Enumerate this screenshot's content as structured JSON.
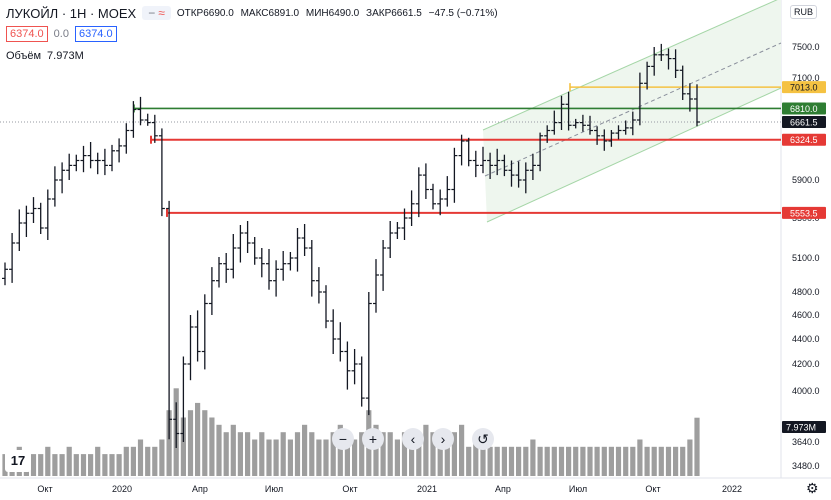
{
  "header": {
    "symbol": "ЛУКОЙЛ · 1Н · MOEX",
    "indicator_minus": "−",
    "indicator_wave": "≈",
    "open_label": "ОТКР",
    "open": "6690.0",
    "high_label": "МАКС",
    "high": "6891.0",
    "low_label": "МИН",
    "low": "6490.0",
    "close_label": "ЗАКР",
    "close": "6661.5",
    "change": "−47.5 (−0.71%)",
    "bid": "6374.0",
    "spread": "0.0",
    "ask": "6374.0",
    "volume_label": "Объём",
    "volume": "7.973M",
    "currency": "RUB"
  },
  "controls": {
    "zoom_out": "−",
    "zoom_in": "+",
    "scroll_left": "‹",
    "scroll_right": "›",
    "reset": "↺",
    "logo": "17",
    "settings": "⚙"
  },
  "colors": {
    "bar": "#131722",
    "volume": "#9e9e9e",
    "green_line": "#2e7d32",
    "red_line": "#e53935",
    "yellow_line": "#f5c242",
    "channel": "#a5d6a7"
  },
  "chart_data": {
    "type": "ohlc",
    "interval": "1W",
    "x_ticks": [
      "Окт",
      "2020",
      "Апр",
      "Июл",
      "Окт",
      "2021",
      "Апр",
      "Июл",
      "Окт",
      "2022"
    ],
    "y_ticks": [
      7500,
      7100,
      6700,
      6300,
      5900,
      5500,
      5100,
      4800,
      4600,
      4400,
      4200,
      4000,
      3640,
      3480
    ],
    "closes": [
      5000,
      5250,
      5450,
      5550,
      5600,
      5400,
      5700,
      5900,
      6000,
      6050,
      6100,
      6150,
      6100,
      6100,
      6050,
      6200,
      6250,
      6500,
      6800,
      6700,
      6650,
      6400,
      5600,
      3800,
      3700,
      4200,
      4500,
      4300,
      4700,
      4900,
      5050,
      5000,
      5200,
      5350,
      5250,
      5100,
      5050,
      4900,
      5000,
      5050,
      5100,
      5300,
      5200,
      4900,
      4800,
      4550,
      4400,
      4300,
      4150,
      4200,
      3950,
      4700,
      4950,
      5200,
      5350,
      5400,
      5500,
      5650,
      5950,
      5800,
      5650,
      5700,
      5800,
      6150,
      6300,
      6100,
      6050,
      6100,
      6050,
      6100,
      6000,
      5950,
      5900,
      6000,
      6050,
      6400,
      6500,
      6650,
      6850,
      6600,
      6650,
      6600,
      6500,
      6400,
      6300,
      6450,
      6500,
      6550,
      6700,
      7050,
      7250,
      7400,
      7400,
      7350,
      7200,
      6950,
      6900,
      6661.5
    ],
    "volumes": [
      3,
      3,
      4,
      3,
      3,
      3,
      4,
      3,
      3,
      4,
      3,
      3,
      3,
      4,
      3,
      3,
      3,
      4,
      4,
      5,
      4,
      4,
      5,
      9,
      12,
      8,
      9,
      10,
      9,
      8,
      7,
      6,
      7,
      6,
      6,
      5,
      6,
      5,
      5,
      6,
      5,
      6,
      7,
      6,
      5,
      5,
      6,
      7,
      6,
      5,
      6,
      9,
      7,
      6,
      6,
      5,
      6,
      5,
      6,
      7,
      6,
      5,
      5,
      6,
      7,
      4,
      5,
      5,
      4,
      4,
      4,
      4,
      4,
      4,
      5,
      4,
      4,
      4,
      4,
      4,
      4,
      4,
      4,
      4,
      4,
      4,
      4,
      4,
      4,
      5,
      4,
      4,
      4,
      4,
      4,
      4,
      5,
      7.973
    ],
    "volume_last": "7.973M",
    "price_labels": [
      {
        "value": "7013.0",
        "color": "#f5c242",
        "price": 7013
      },
      {
        "value": "6810.0",
        "color": "#2e7d32",
        "price": 6810
      },
      {
        "value": "6661.5",
        "color": "#131722",
        "price": 6661.5
      },
      {
        "value": "6324.5",
        "color": "#e53935",
        "price": 6324.5
      },
      {
        "value": "5553.5",
        "color": "#e53935",
        "price": 5553.5
      }
    ],
    "horizontal_levels": [
      {
        "price": 6810,
        "color": "#2e7d32"
      },
      {
        "price": 6324.5,
        "color": "#e53935"
      },
      {
        "price": 5553.5,
        "color": "#e53935"
      },
      {
        "price": 7013,
        "color": "#f5c242"
      }
    ]
  }
}
